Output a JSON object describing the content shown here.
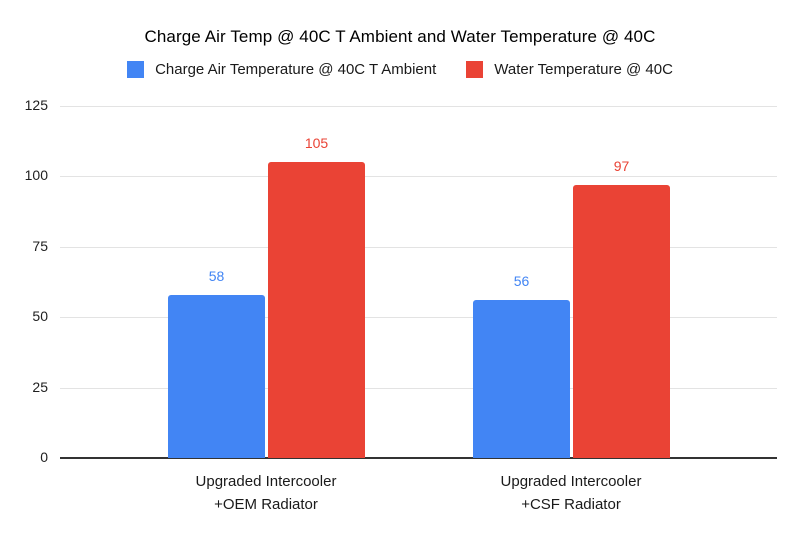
{
  "title": "Charge Air Temp @ 40C T Ambient and Water Temperature @ 40C",
  "legend": {
    "items": [
      {
        "label": "Charge Air Temperature @ 40C T Ambient",
        "color": "#4285F4"
      },
      {
        "label": "Water Temperature @ 40C",
        "color": "#EA4335"
      }
    ]
  },
  "chart_data": {
    "type": "bar",
    "title": "Charge Air Temp @ 40C T Ambient and Water Temperature @ 40C",
    "categories": [
      "Upgraded Intercooler\n+OEM Radiator",
      "Upgraded Intercooler\n+CSF Radiator"
    ],
    "series": [
      {
        "name": "Charge Air Temperature @ 40C T Ambient",
        "color": "#4285F4",
        "values": [
          58,
          56
        ]
      },
      {
        "name": "Water Temperature @ 40C",
        "color": "#EA4335",
        "values": [
          105,
          97
        ]
      }
    ],
    "ylim": [
      0,
      125
    ],
    "yticks": [
      0,
      25,
      50,
      75,
      100,
      125
    ],
    "grid": true,
    "legend_position": "top",
    "data_labels": true,
    "background": "#ffffff"
  }
}
